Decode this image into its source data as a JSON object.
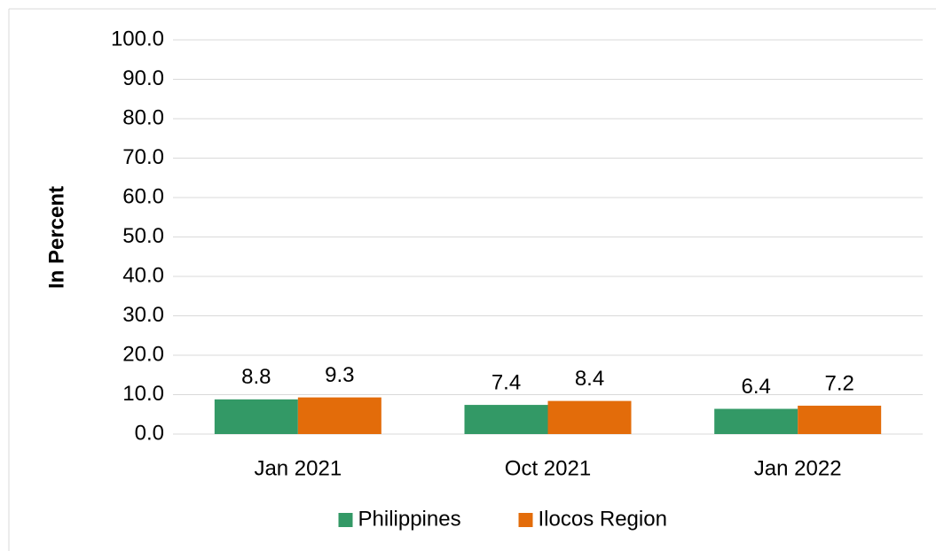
{
  "chart_data": {
    "type": "bar",
    "y_label": "In Percent",
    "categories": [
      "Jan 2021",
      "Oct 2021",
      "Jan 2022"
    ],
    "series": [
      {
        "name": "Philippines",
        "color": "#339966",
        "values": [
          8.8,
          7.4,
          6.4
        ]
      },
      {
        "name": "Ilocos Region",
        "color": "#e36c0a",
        "values": [
          9.3,
          8.4,
          7.2
        ]
      }
    ],
    "ylim": [
      0,
      100
    ],
    "yticks": [
      {
        "value": 0,
        "label": "0.0"
      },
      {
        "value": 10,
        "label": "10.0"
      },
      {
        "value": 20,
        "label": "20.0"
      },
      {
        "value": 30,
        "label": "30.0"
      },
      {
        "value": 40,
        "label": "40.0"
      },
      {
        "value": 50,
        "label": "50.0"
      },
      {
        "value": 60,
        "label": "60.0"
      },
      {
        "value": 70,
        "label": "70.0"
      },
      {
        "value": 80,
        "label": "80.0"
      },
      {
        "value": 90,
        "label": "90.0"
      },
      {
        "value": 100,
        "label": "100.0"
      }
    ],
    "grid": true,
    "legend": "bottom"
  }
}
